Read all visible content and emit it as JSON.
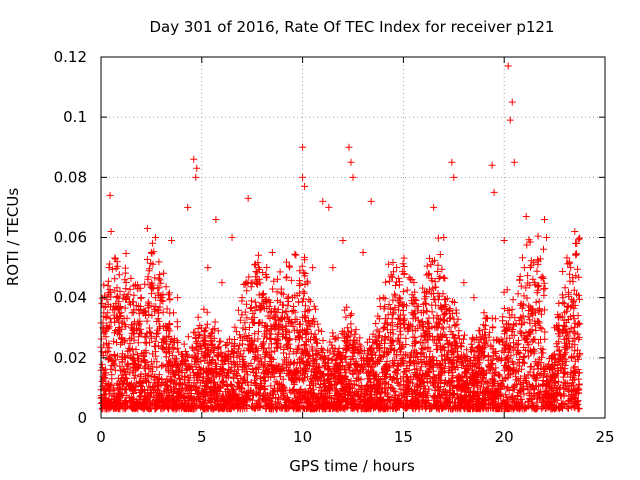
{
  "chart_data": {
    "type": "scatter",
    "title": "Day 301 of 2016, Rate Of TEC Index for receiver p121",
    "xlabel": "GPS time / hours",
    "ylabel": "ROTI / TECUs",
    "xlim": [
      0,
      25
    ],
    "ylim": [
      0,
      0.12
    ],
    "xticks": [
      0,
      5,
      10,
      15,
      20,
      25
    ],
    "xtick_labels": [
      "0",
      "5",
      "10",
      "15",
      "20",
      "25"
    ],
    "yticks": [
      0,
      0.02,
      0.04,
      0.06,
      0.08,
      0.1,
      0.12
    ],
    "ytick_labels": [
      "0",
      "0.02",
      "0.04",
      "0.06",
      "0.08",
      "0.1",
      "0.12"
    ],
    "grid": true,
    "marker": "plus",
    "marker_color": "#ff0000",
    "series": [
      {
        "name": "ROTI",
        "x": [
          0.3,
          0.4,
          0.45,
          0.5,
          0.8,
          1.0,
          1.5,
          2.0,
          2.3,
          2.5,
          2.7,
          3.0,
          3.5,
          3.8,
          4.3,
          4.6,
          4.7,
          4.75,
          5.3,
          5.7,
          6.0,
          6.5,
          7.0,
          7.3,
          7.5,
          8.0,
          8.5,
          9.0,
          9.5,
          10.0,
          10.0,
          10.1,
          10.5,
          11.0,
          11.3,
          11.5,
          12.0,
          12.3,
          12.4,
          12.5,
          13.0,
          13.4,
          14.0,
          14.5,
          15.0,
          15.5,
          16.0,
          16.5,
          17.0,
          17.4,
          17.5,
          18.0,
          18.5,
          19.0,
          19.4,
          19.5,
          20.0,
          20.2,
          20.4,
          20.3,
          20.5,
          21.0,
          21.5,
          22.0,
          22.1,
          22.5,
          23.0,
          23.3,
          23.5,
          23.6
        ],
        "y": [
          0.03,
          0.05,
          0.074,
          0.062,
          0.052,
          0.035,
          0.03,
          0.04,
          0.063,
          0.055,
          0.06,
          0.04,
          0.059,
          0.04,
          0.07,
          0.086,
          0.08,
          0.083,
          0.05,
          0.066,
          0.045,
          0.06,
          0.04,
          0.073,
          0.045,
          0.04,
          0.055,
          0.035,
          0.04,
          0.09,
          0.08,
          0.077,
          0.05,
          0.072,
          0.07,
          0.05,
          0.059,
          0.09,
          0.085,
          0.08,
          0.055,
          0.072,
          0.04,
          0.035,
          0.042,
          0.04,
          0.035,
          0.07,
          0.06,
          0.085,
          0.08,
          0.045,
          0.04,
          0.035,
          0.084,
          0.075,
          0.059,
          0.117,
          0.105,
          0.099,
          0.085,
          0.05,
          0.045,
          0.066,
          0.06,
          0.03,
          0.035,
          0.05,
          0.062,
          0.058
        ]
      }
    ]
  }
}
